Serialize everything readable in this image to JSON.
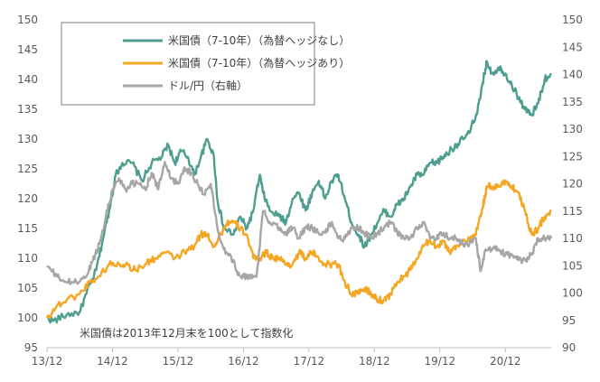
{
  "chart_data": {
    "type": "line",
    "title": "",
    "note": "米国債は2013年12月末を100として指数化",
    "x_tick_labels": [
      "13/12",
      "14/12",
      "15/12",
      "16/12",
      "17/12",
      "18/12",
      "19/12",
      "20/12"
    ],
    "y_left": {
      "min": 95,
      "max": 150,
      "step": 5,
      "ticks": [
        "95",
        "100",
        "105",
        "110",
        "115",
        "120",
        "125",
        "130",
        "135",
        "140",
        "145",
        "150"
      ]
    },
    "y_right": {
      "min": 90,
      "max": 150,
      "step": 5,
      "ticks": [
        "90",
        "95",
        "100",
        "105",
        "110",
        "115",
        "120",
        "125",
        "130",
        "135",
        "140",
        "145",
        "150"
      ]
    },
    "x_range": [
      0,
      7.7
    ],
    "series": [
      {
        "name": "米国債（7-10年）（為替ヘッジなし）",
        "axis": "left",
        "color": "#4e9e8f",
        "points": [
          [
            0,
            100
          ],
          [
            0.1,
            99.5
          ],
          [
            0.3,
            100.5
          ],
          [
            0.5,
            101
          ],
          [
            0.6,
            104
          ],
          [
            0.75,
            108
          ],
          [
            0.85,
            113
          ],
          [
            0.95,
            118
          ],
          [
            1.05,
            124
          ],
          [
            1.15,
            126
          ],
          [
            1.3,
            126
          ],
          [
            1.45,
            123
          ],
          [
            1.6,
            126
          ],
          [
            1.75,
            127
          ],
          [
            1.85,
            129
          ],
          [
            1.95,
            126
          ],
          [
            2.05,
            128
          ],
          [
            2.15,
            127
          ],
          [
            2.25,
            124
          ],
          [
            2.35,
            127
          ],
          [
            2.45,
            130
          ],
          [
            2.55,
            127
          ],
          [
            2.6,
            120
          ],
          [
            2.7,
            115
          ],
          [
            2.85,
            114
          ],
          [
            2.95,
            117
          ],
          [
            3.05,
            115
          ],
          [
            3.15,
            118
          ],
          [
            3.25,
            124
          ],
          [
            3.3,
            121
          ],
          [
            3.4,
            118
          ],
          [
            3.55,
            117
          ],
          [
            3.65,
            116
          ],
          [
            3.75,
            120
          ],
          [
            3.85,
            121
          ],
          [
            3.95,
            118
          ],
          [
            4.05,
            121
          ],
          [
            4.15,
            123
          ],
          [
            4.25,
            120
          ],
          [
            4.35,
            123
          ],
          [
            4.45,
            124
          ],
          [
            4.55,
            120
          ],
          [
            4.65,
            116
          ],
          [
            4.75,
            114
          ],
          [
            4.85,
            112
          ],
          [
            4.95,
            114
          ],
          [
            5.05,
            116
          ],
          [
            5.15,
            118
          ],
          [
            5.25,
            117
          ],
          [
            5.35,
            119
          ],
          [
            5.45,
            120
          ],
          [
            5.55,
            122
          ],
          [
            5.65,
            124
          ],
          [
            5.75,
            124
          ],
          [
            5.85,
            126
          ],
          [
            5.95,
            126
          ],
          [
            6.05,
            127
          ],
          [
            6.15,
            128
          ],
          [
            6.25,
            129
          ],
          [
            6.35,
            130
          ],
          [
            6.45,
            131
          ],
          [
            6.55,
            134
          ],
          [
            6.62,
            137
          ],
          [
            6.68,
            141
          ],
          [
            6.72,
            143
          ],
          [
            6.8,
            141
          ],
          [
            6.9,
            142
          ],
          [
            7.0,
            141
          ],
          [
            7.1,
            139
          ],
          [
            7.2,
            137
          ],
          [
            7.3,
            135
          ],
          [
            7.4,
            134
          ],
          [
            7.5,
            136
          ],
          [
            7.6,
            140
          ],
          [
            7.7,
            141
          ]
        ]
      },
      {
        "name": "米国債（7-10年）（為替ヘッジあり）",
        "axis": "left",
        "color": "#f5a623",
        "points": [
          [
            0,
            100
          ],
          [
            0.15,
            102
          ],
          [
            0.3,
            103
          ],
          [
            0.5,
            104
          ],
          [
            0.65,
            106
          ],
          [
            0.8,
            107
          ],
          [
            0.95,
            109
          ],
          [
            1.1,
            109
          ],
          [
            1.2,
            109
          ],
          [
            1.35,
            108
          ],
          [
            1.5,
            109
          ],
          [
            1.65,
            110
          ],
          [
            1.8,
            111
          ],
          [
            1.95,
            110
          ],
          [
            2.1,
            111
          ],
          [
            2.25,
            112
          ],
          [
            2.35,
            114
          ],
          [
            2.45,
            114
          ],
          [
            2.55,
            112
          ],
          [
            2.65,
            114
          ],
          [
            2.75,
            116
          ],
          [
            2.85,
            116
          ],
          [
            2.95,
            115
          ],
          [
            3.05,
            114
          ],
          [
            3.15,
            110
          ],
          [
            3.25,
            110
          ],
          [
            3.35,
            111
          ],
          [
            3.45,
            110
          ],
          [
            3.55,
            110
          ],
          [
            3.65,
            109
          ],
          [
            3.75,
            109
          ],
          [
            3.85,
            111
          ],
          [
            3.95,
            110
          ],
          [
            4.05,
            111
          ],
          [
            4.15,
            110
          ],
          [
            4.25,
            109
          ],
          [
            4.35,
            109
          ],
          [
            4.45,
            109
          ],
          [
            4.55,
            106
          ],
          [
            4.65,
            104
          ],
          [
            4.75,
            104
          ],
          [
            4.85,
            105
          ],
          [
            4.95,
            104
          ],
          [
            5.05,
            103
          ],
          [
            5.15,
            103
          ],
          [
            5.25,
            104
          ],
          [
            5.35,
            106
          ],
          [
            5.45,
            107
          ],
          [
            5.55,
            108
          ],
          [
            5.65,
            110
          ],
          [
            5.75,
            112
          ],
          [
            5.85,
            113
          ],
          [
            5.95,
            112
          ],
          [
            6.05,
            113
          ],
          [
            6.15,
            111
          ],
          [
            6.25,
            112
          ],
          [
            6.35,
            113
          ],
          [
            6.45,
            113
          ],
          [
            6.55,
            114
          ],
          [
            6.62,
            117
          ],
          [
            6.68,
            120
          ],
          [
            6.72,
            122
          ],
          [
            6.8,
            122
          ],
          [
            6.9,
            122
          ],
          [
            7.0,
            123
          ],
          [
            7.1,
            122
          ],
          [
            7.2,
            121
          ],
          [
            7.3,
            118
          ],
          [
            7.4,
            114
          ],
          [
            7.5,
            115
          ],
          [
            7.6,
            117
          ],
          [
            7.7,
            118
          ]
        ]
      },
      {
        "name": "ドル/円（右軸）",
        "axis": "right",
        "color": "#a6a6a6",
        "points": [
          [
            0,
            105
          ],
          [
            0.15,
            103
          ],
          [
            0.3,
            102
          ],
          [
            0.45,
            102
          ],
          [
            0.6,
            103
          ],
          [
            0.7,
            106
          ],
          [
            0.8,
            109
          ],
          [
            0.9,
            114
          ],
          [
            1.0,
            119
          ],
          [
            1.1,
            121
          ],
          [
            1.2,
            119
          ],
          [
            1.3,
            120
          ],
          [
            1.4,
            120
          ],
          [
            1.5,
            119
          ],
          [
            1.6,
            122
          ],
          [
            1.7,
            119
          ],
          [
            1.8,
            124
          ],
          [
            1.9,
            121
          ],
          [
            2.0,
            120
          ],
          [
            2.1,
            123
          ],
          [
            2.2,
            122
          ],
          [
            2.3,
            120
          ],
          [
            2.4,
            118
          ],
          [
            2.5,
            120
          ],
          [
            2.6,
            112
          ],
          [
            2.7,
            108
          ],
          [
            2.8,
            107
          ],
          [
            2.9,
            104
          ],
          [
            3.0,
            103
          ],
          [
            3.1,
            103
          ],
          [
            3.2,
            103
          ],
          [
            3.3,
            115
          ],
          [
            3.4,
            113
          ],
          [
            3.55,
            112
          ],
          [
            3.65,
            111
          ],
          [
            3.75,
            112
          ],
          [
            3.85,
            110
          ],
          [
            3.95,
            112
          ],
          [
            4.05,
            112
          ],
          [
            4.15,
            111
          ],
          [
            4.25,
            111
          ],
          [
            4.35,
            113
          ],
          [
            4.45,
            110
          ],
          [
            4.55,
            110
          ],
          [
            4.65,
            112
          ],
          [
            4.75,
            112
          ],
          [
            4.85,
            111
          ],
          [
            4.95,
            110
          ],
          [
            5.05,
            111
          ],
          [
            5.15,
            112
          ],
          [
            5.25,
            113
          ],
          [
            5.35,
            111
          ],
          [
            5.45,
            110
          ],
          [
            5.55,
            110
          ],
          [
            5.65,
            112
          ],
          [
            5.75,
            113
          ],
          [
            5.85,
            110
          ],
          [
            5.95,
            110
          ],
          [
            6.05,
            111
          ],
          [
            6.15,
            110
          ],
          [
            6.25,
            110
          ],
          [
            6.35,
            109
          ],
          [
            6.45,
            109
          ],
          [
            6.55,
            110
          ],
          [
            6.62,
            104
          ],
          [
            6.7,
            108
          ],
          [
            6.8,
            108
          ],
          [
            6.9,
            108
          ],
          [
            7.0,
            107
          ],
          [
            7.1,
            107
          ],
          [
            7.2,
            106
          ],
          [
            7.3,
            106
          ],
          [
            7.4,
            107
          ],
          [
            7.5,
            110
          ],
          [
            7.6,
            110
          ],
          [
            7.7,
            110
          ]
        ]
      }
    ],
    "legend": {
      "position": "top-left",
      "entries": [
        "米国債（7-10年）（為替ヘッジなし）",
        "米国債（7-10年）（為替ヘッジあり）",
        "ドル/円（右軸）"
      ]
    },
    "grid": false
  }
}
